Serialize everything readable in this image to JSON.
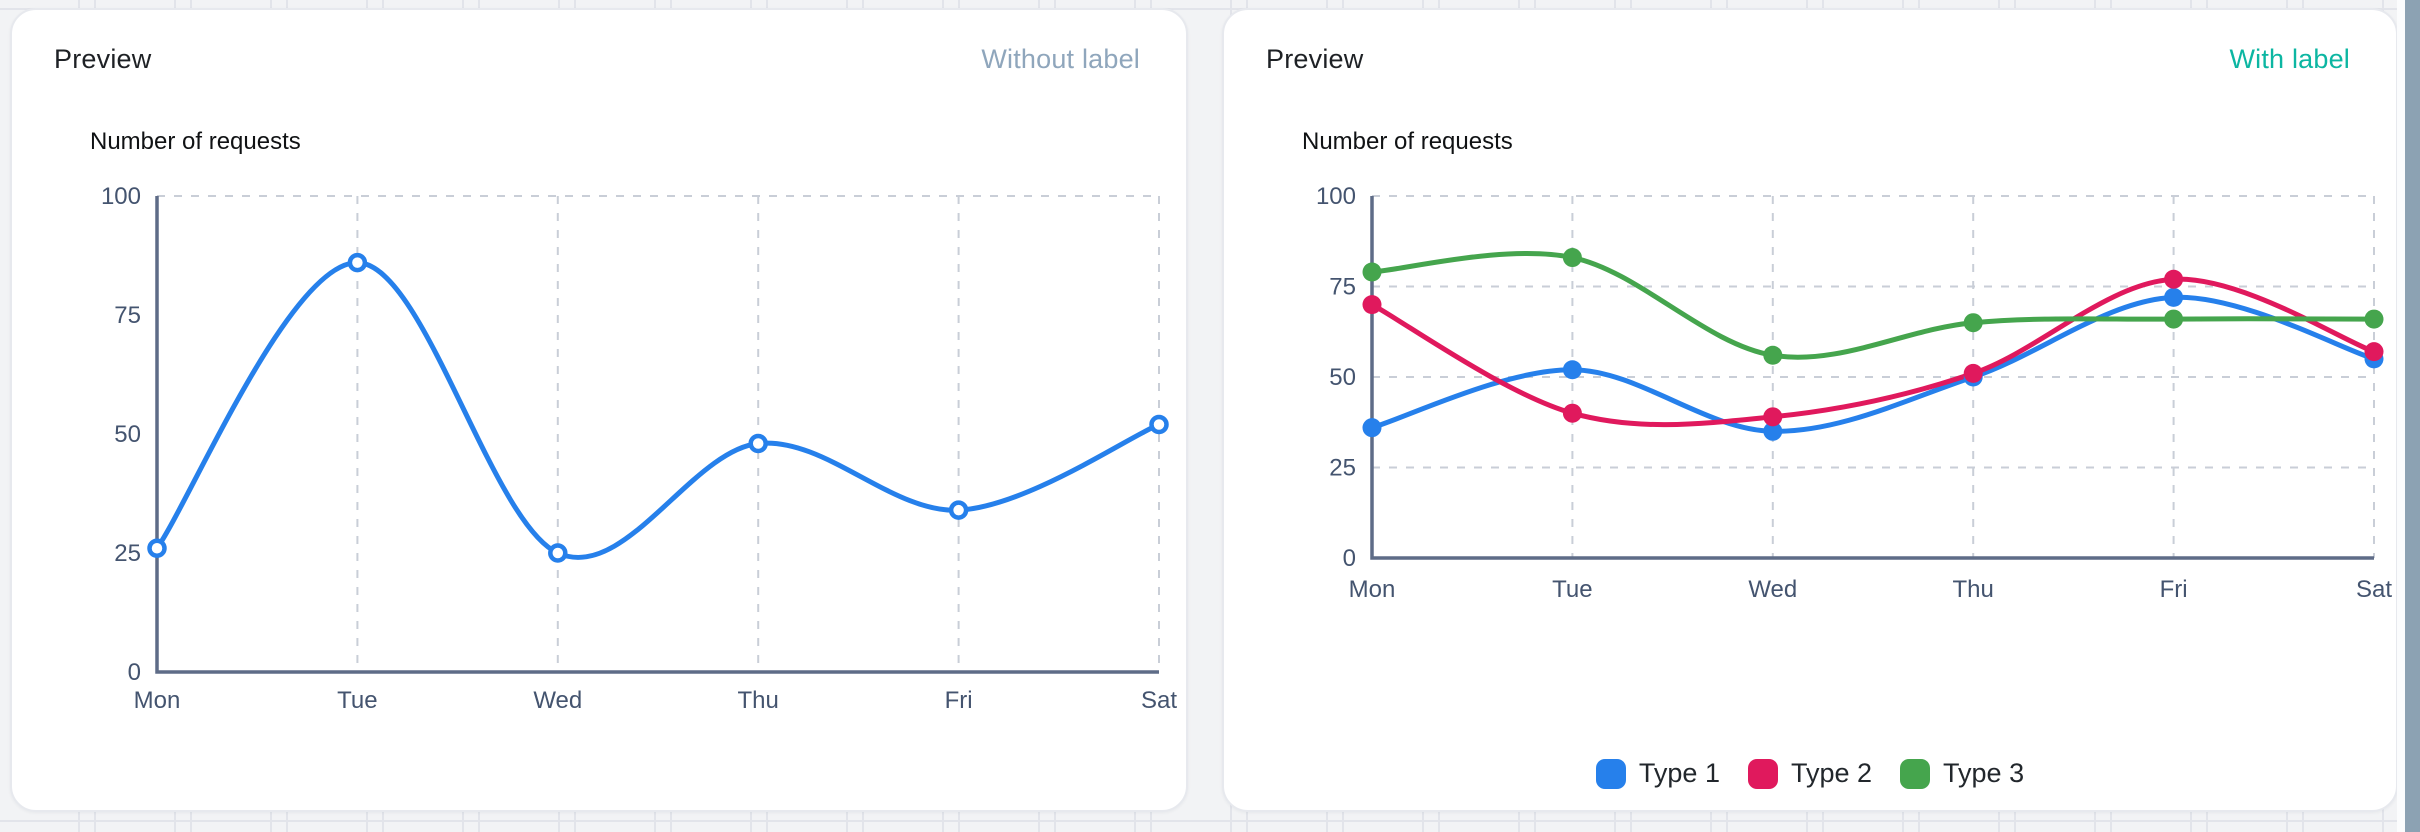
{
  "page": {
    "background_color": "#f2f3f5",
    "grid_line_color": "#e2e4ea",
    "edge_band_color": "#8ca2b3"
  },
  "panels": [
    {
      "title": "Preview",
      "badge": "Without label",
      "badge_color": "#8fa6bc"
    },
    {
      "title": "Preview",
      "badge": "With label",
      "badge_color": "#0cb6a2"
    }
  ],
  "chart_data": [
    {
      "type": "line",
      "title": "Number of requests",
      "categories": [
        "Mon",
        "Tue",
        "Wed",
        "Thu",
        "Fri",
        "Sat"
      ],
      "series": [
        {
          "name": "Number of requests",
          "color": "#2680eb",
          "point_style": "open",
          "values": [
            26,
            86,
            25,
            48,
            34,
            52
          ]
        }
      ],
      "ylim": [
        0,
        100
      ],
      "yticks": [
        0,
        25,
        50,
        75,
        100
      ],
      "grid": {
        "vertical": true,
        "horizontal_ticks": [
          100
        ]
      },
      "legend": false,
      "axis_color": "#5e6c87",
      "grid_color": "#c9ced7",
      "tick_label_color": "#44546f"
    },
    {
      "type": "line",
      "title": "Number of requests",
      "categories": [
        "Mon",
        "Tue",
        "Wed",
        "Thu",
        "Fri",
        "Sat"
      ],
      "series": [
        {
          "name": "Type 1",
          "color": "#2680eb",
          "point_style": "filled",
          "values": [
            36,
            52,
            35,
            50,
            72,
            55
          ]
        },
        {
          "name": "Type 2",
          "color": "#e0195d",
          "point_style": "filled",
          "values": [
            70,
            40,
            39,
            51,
            77,
            57
          ]
        },
        {
          "name": "Type 3",
          "color": "#45a54d",
          "point_style": "filled",
          "values": [
            79,
            83,
            56,
            65,
            66,
            66
          ]
        }
      ],
      "ylim": [
        0,
        100
      ],
      "yticks": [
        0,
        25,
        50,
        75,
        100
      ],
      "grid": {
        "vertical": true,
        "horizontal_ticks": [
          25,
          50,
          75,
          100
        ]
      },
      "legend": true,
      "legend_position": "bottom",
      "axis_color": "#5e6c87",
      "grid_color": "#c9ced7",
      "tick_label_color": "#44546f"
    }
  ]
}
